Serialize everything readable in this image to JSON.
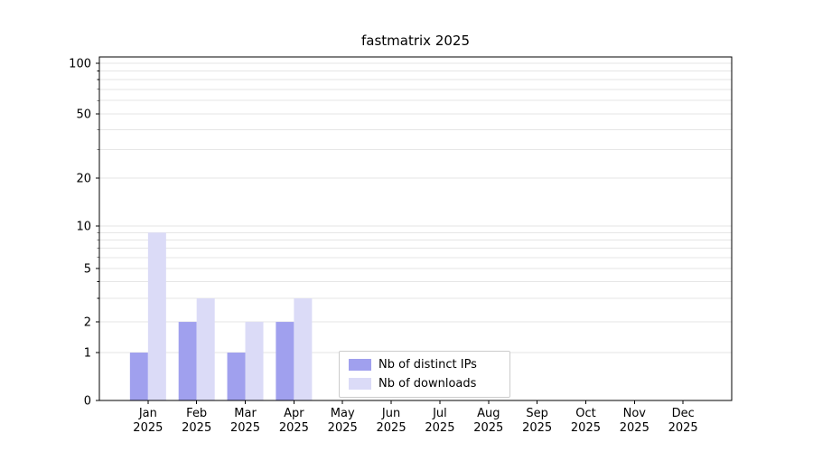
{
  "figure": {
    "title": "fastmatrix 2025"
  },
  "chart_data": {
    "type": "bar",
    "title": "fastmatrix 2025",
    "categories": [
      "Jan",
      "Feb",
      "Mar",
      "Apr",
      "May",
      "Jun",
      "Jul",
      "Aug",
      "Sep",
      "Oct",
      "Nov",
      "Dec"
    ],
    "category_year": "2025",
    "series": [
      {
        "name": "Nb of distinct IPs",
        "color": "#a0a0ee",
        "values": [
          1,
          2,
          1,
          2,
          0,
          0,
          0,
          0,
          0,
          0,
          0,
          0
        ]
      },
      {
        "name": "Nb of downloads",
        "color": "#dbdbf7",
        "values": [
          9,
          3,
          2,
          3,
          0,
          0,
          0,
          0,
          0,
          0,
          0,
          0
        ]
      }
    ],
    "xlabel": "",
    "ylabel": "",
    "yscale": "symlog",
    "yticks": [
      0,
      1,
      2,
      5,
      10,
      20,
      50,
      100
    ],
    "ylim": [
      0,
      100
    ],
    "grid": true,
    "grid_color": "#e6e6e6",
    "axis_color": "#000000",
    "legend_position": "lower center"
  }
}
